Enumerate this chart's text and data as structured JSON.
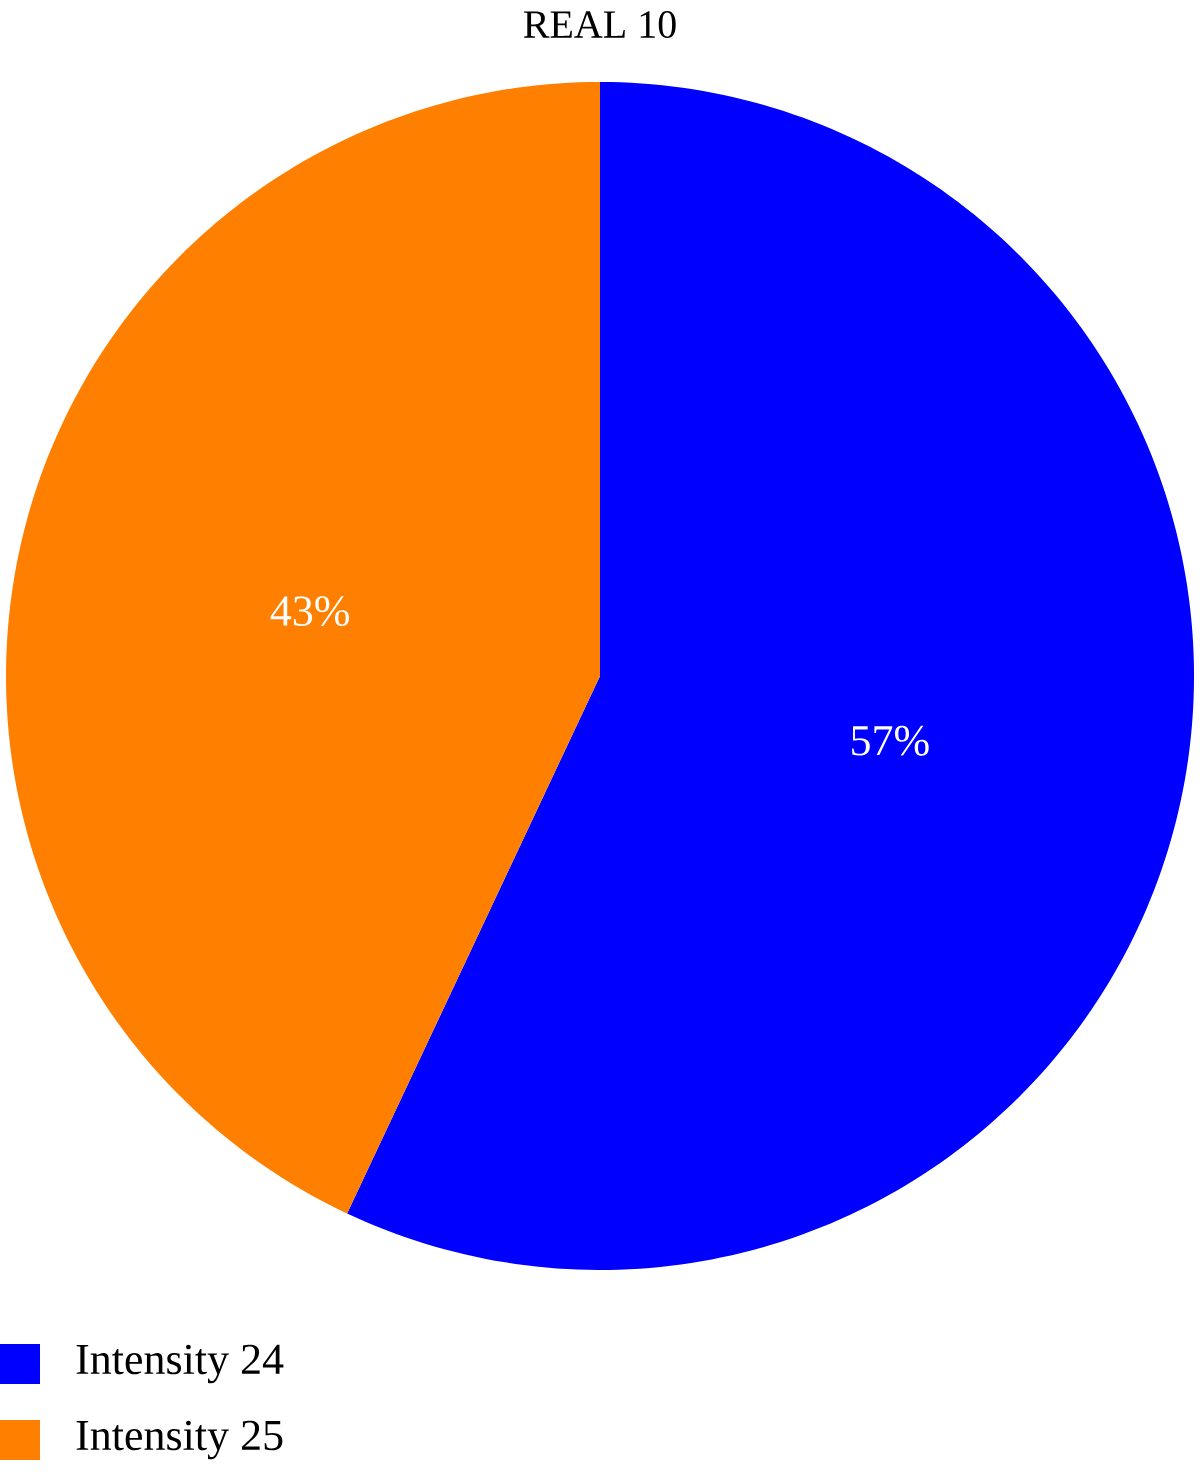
{
  "chart_data": {
    "type": "pie",
    "title": "REAL 10",
    "categories": [
      "Intensity 24",
      "Intensity 25"
    ],
    "values": [
      57,
      43
    ],
    "colors": [
      "#0000ff",
      "#ff7f00"
    ],
    "value_labels": [
      "57%",
      "43%"
    ],
    "legend": "bottom left"
  }
}
